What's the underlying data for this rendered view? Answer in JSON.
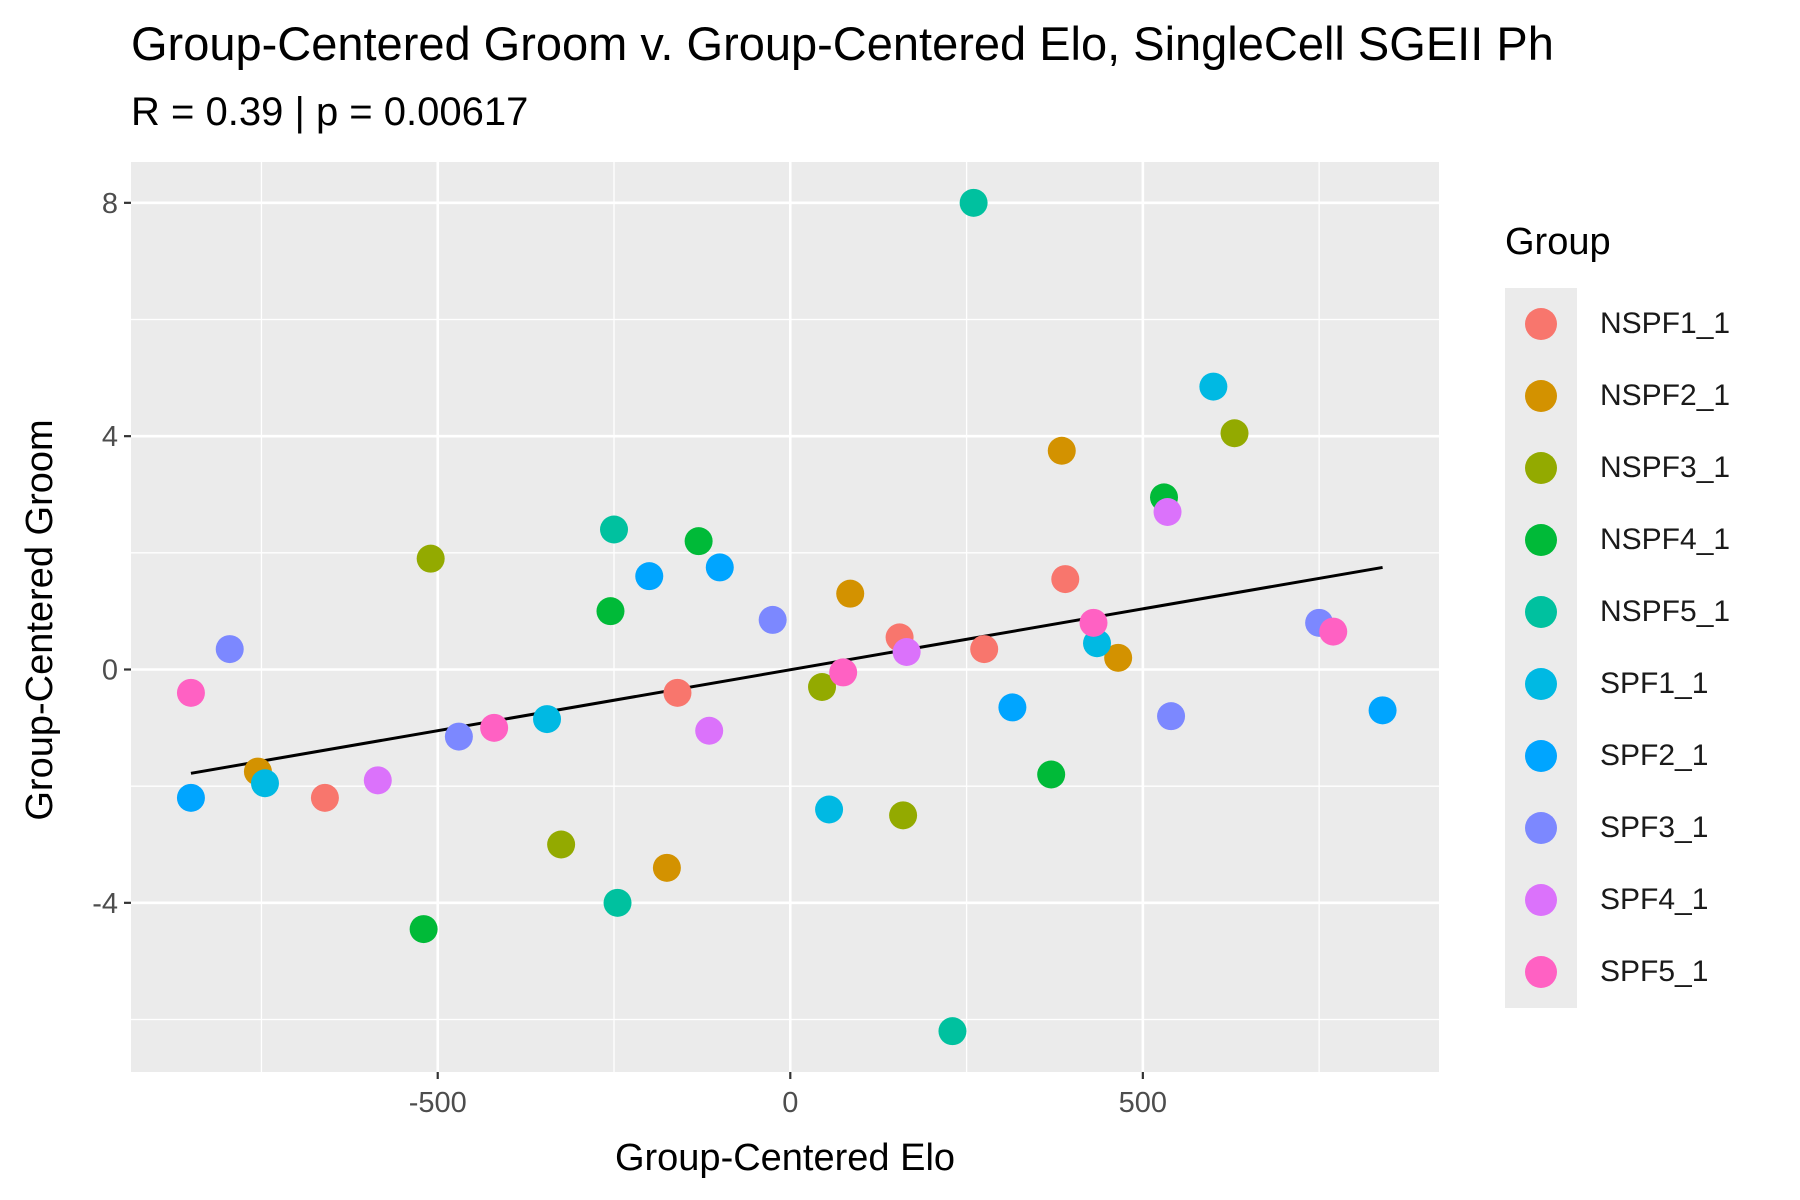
{
  "chart_data": {
    "type": "scatter",
    "title": "Group-Centered Groom v. Group-Centered Elo, SingleCell SGEII Ph",
    "subtitle": "R = 0.39 | p = 0.00617",
    "xlabel": "Group-Centered Elo",
    "ylabel": "Group-Centered Groom",
    "x_ticks": [
      -500,
      0,
      500
    ],
    "y_ticks": [
      -4,
      0,
      4,
      8
    ],
    "x_tick_labels": [
      "-500",
      "0",
      "500"
    ],
    "y_tick_labels": [
      "-4",
      "0",
      "4",
      "8"
    ],
    "xlim": [
      -935,
      920
    ],
    "ylim": [
      -6.9,
      8.7
    ],
    "grid": true,
    "legend_title": "Group",
    "legend_position": "right",
    "trend_line": {
      "x": [
        -850,
        840
      ],
      "y": [
        -1.78,
        1.75
      ],
      "color": "#000000"
    },
    "series": [
      {
        "name": "NSPF1_1",
        "color": "#F8766D",
        "points": [
          [
            -660,
            -2.2
          ],
          [
            -160,
            -0.4
          ],
          [
            155,
            0.55
          ],
          [
            275,
            0.35
          ],
          [
            390,
            1.55
          ]
        ]
      },
      {
        "name": "NSPF2_1",
        "color": "#D39200",
        "points": [
          [
            -755,
            -1.75
          ],
          [
            -175,
            -3.4
          ],
          [
            85,
            1.3
          ],
          [
            385,
            3.75
          ],
          [
            465,
            0.2
          ]
        ]
      },
      {
        "name": "NSPF3_1",
        "color": "#93AA00",
        "points": [
          [
            -510,
            1.9
          ],
          [
            -325,
            -3.0
          ],
          [
            45,
            -0.3
          ],
          [
            160,
            -2.5
          ],
          [
            630,
            4.05
          ]
        ]
      },
      {
        "name": "NSPF4_1",
        "color": "#00BA38",
        "points": [
          [
            -520,
            -4.45
          ],
          [
            -255,
            1.0
          ],
          [
            -130,
            2.2
          ],
          [
            370,
            -1.8
          ],
          [
            530,
            2.95
          ]
        ]
      },
      {
        "name": "NSPF5_1",
        "color": "#00C19F",
        "points": [
          [
            -250,
            2.4
          ],
          [
            -245,
            -4.0
          ],
          [
            230,
            -6.2
          ],
          [
            260,
            8.0
          ]
        ]
      },
      {
        "name": "SPF1_1",
        "color": "#00B9E3",
        "points": [
          [
            -745,
            -1.95
          ],
          [
            -345,
            -0.85
          ],
          [
            55,
            -2.4
          ],
          [
            435,
            0.45
          ],
          [
            600,
            4.85
          ]
        ]
      },
      {
        "name": "SPF2_1",
        "color": "#00A5FF",
        "points": [
          [
            -850,
            -2.2
          ],
          [
            -200,
            1.6
          ],
          [
            -100,
            1.75
          ],
          [
            315,
            -0.65
          ],
          [
            840,
            -0.7
          ]
        ]
      },
      {
        "name": "SPF3_1",
        "color": "#7C88FF",
        "points": [
          [
            -795,
            0.35
          ],
          [
            -470,
            -1.15
          ],
          [
            -25,
            0.85
          ],
          [
            540,
            -0.8
          ],
          [
            750,
            0.8
          ]
        ]
      },
      {
        "name": "SPF4_1",
        "color": "#DB72FB",
        "points": [
          [
            -585,
            -1.9
          ],
          [
            -115,
            -1.05
          ],
          [
            165,
            0.3
          ],
          [
            535,
            2.7
          ]
        ]
      },
      {
        "name": "SPF5_1",
        "color": "#FF61C3",
        "points": [
          [
            -850,
            -0.4
          ],
          [
            -420,
            -1.0
          ],
          [
            75,
            -0.05
          ],
          [
            430,
            0.8
          ],
          [
            770,
            0.65
          ]
        ]
      }
    ]
  }
}
